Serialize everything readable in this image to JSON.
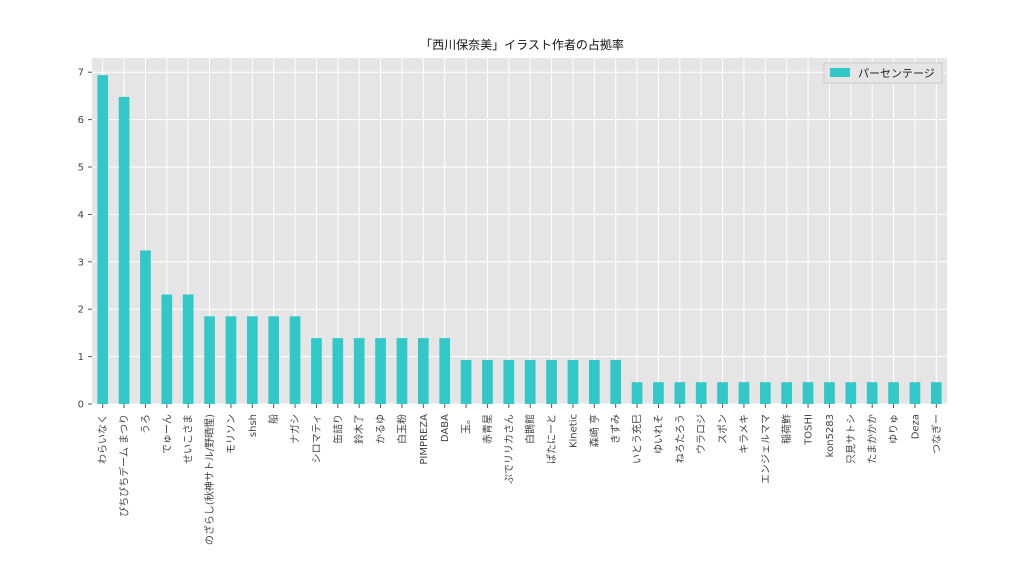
{
  "chart_data": {
    "type": "bar",
    "title": "「西川保奈美」イラスト作者の占拠率",
    "xlabel": "",
    "ylabel": "",
    "ylim": [
      0,
      7.3
    ],
    "yticks": [
      0,
      1,
      2,
      3,
      4,
      5,
      6,
      7
    ],
    "grid": true,
    "legend_position": "top-right",
    "bar_color": "#33c8c8",
    "background_color": "#e5e5e5",
    "categories": [
      "わらいなく",
      "ぴちぴちデーム まつり",
      "うろ",
      "でゅーん",
      "せいこさま",
      "のざらし(秋神サトル/野晒惺)",
      "モリソン",
      "shsh",
      "船",
      "ナガシ",
      "シロマティ",
      "缶詰り",
      "鈴木了",
      "かるゆ",
      "白玉粉",
      "PIMPREZA",
      "DABA",
      "玉。",
      "赤青星",
      "ぷでリリカさん",
      "白鵲館",
      "ぱたにーと",
      "Kinetic",
      "森崎 亨",
      "きずみ",
      "いとう充巳",
      "ゆいれそ",
      "ねろたろう",
      "ウラロジ",
      "スポン",
      "キラメキ",
      "エンジェルママ",
      "稲荷鮓",
      "TOSHI",
      "kon5283",
      "只見サトシ",
      "たまかかか",
      "ゆりゅ",
      "Deza",
      "つなぎー"
    ],
    "series": [
      {
        "name": "パーセンテージ",
        "values": [
          6.94,
          6.48,
          3.24,
          2.31,
          2.31,
          1.85,
          1.85,
          1.85,
          1.85,
          1.85,
          1.39,
          1.39,
          1.39,
          1.39,
          1.39,
          1.39,
          1.39,
          0.93,
          0.93,
          0.93,
          0.93,
          0.93,
          0.93,
          0.93,
          0.93,
          0.46,
          0.46,
          0.46,
          0.46,
          0.46,
          0.46,
          0.46,
          0.46,
          0.46,
          0.46,
          0.46,
          0.46,
          0.46,
          0.46,
          0.46
        ]
      }
    ]
  }
}
